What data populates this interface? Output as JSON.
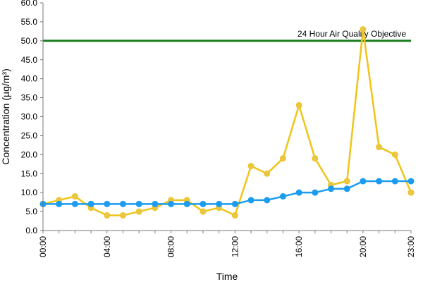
{
  "chart_data": {
    "type": "line",
    "xlabel": "Time",
    "ylabel": "Concentration (µg/m³)",
    "ylim": [
      0,
      60
    ],
    "y_ticks": [
      "0.0",
      "5.0",
      "10.0",
      "15.0",
      "20.0",
      "25.0",
      "30.0",
      "35.0",
      "40.0",
      "45.0",
      "50.0",
      "55.0",
      "60.0"
    ],
    "x_ticks": [
      "00:00",
      "04:00",
      "08:00",
      "12:00",
      "16:00",
      "20:00",
      "23:00"
    ],
    "x_tick_hours": [
      0,
      4,
      8,
      12,
      16,
      20,
      23
    ],
    "x_hours": [
      0,
      1,
      2,
      3,
      4,
      5,
      6,
      7,
      8,
      9,
      10,
      11,
      12,
      13,
      14,
      15,
      16,
      17,
      18,
      19,
      20,
      21,
      22,
      23
    ],
    "grid": false,
    "series": [
      {
        "color": "#f0c419",
        "marker_fill": "#e8c64a",
        "values": [
          7,
          8,
          9,
          6,
          4,
          4,
          5,
          6,
          8,
          8,
          5,
          6,
          4,
          17,
          15,
          19,
          33,
          19,
          12,
          13,
          53,
          22,
          20,
          10
        ]
      },
      {
        "color": "#1a9cf0",
        "marker_fill": "#1a9cf0",
        "values": [
          7,
          7,
          7,
          7,
          7,
          7,
          7,
          7,
          7,
          7,
          7,
          7,
          7,
          8,
          8,
          9,
          10,
          10,
          11,
          11,
          13,
          13,
          13,
          13
        ]
      }
    ],
    "reference_line": {
      "label": "24 Hour Air Quality Objective",
      "value": 50,
      "color": "#1b7a1b"
    }
  }
}
